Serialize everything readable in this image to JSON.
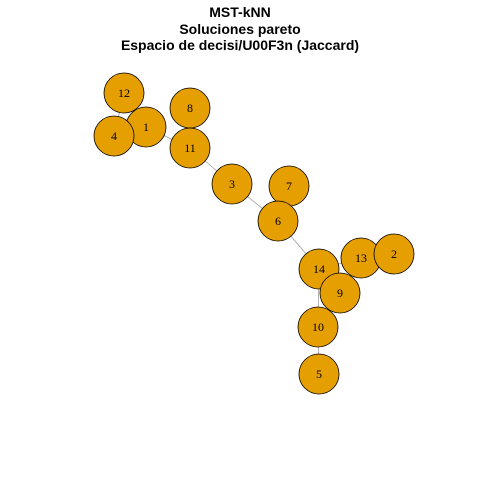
{
  "title": {
    "line1": "MST-kNN",
    "line2": "Soluciones pareto",
    "line3": "Espacio de decisi/U00F3n (Jaccard)"
  },
  "colors": {
    "node_fill": "#E69F00",
    "node_stroke": "#000000",
    "edge": "#A0A0A0"
  },
  "nodes": [
    {
      "id": "12",
      "label": "12"
    },
    {
      "id": "1",
      "label": "1"
    },
    {
      "id": "4",
      "label": "4"
    },
    {
      "id": "8",
      "label": "8"
    },
    {
      "id": "11",
      "label": "11"
    },
    {
      "id": "3",
      "label": "3"
    },
    {
      "id": "7",
      "label": "7"
    },
    {
      "id": "6",
      "label": "6"
    },
    {
      "id": "14",
      "label": "14"
    },
    {
      "id": "13",
      "label": "13"
    },
    {
      "id": "2",
      "label": "2"
    },
    {
      "id": "9",
      "label": "9"
    },
    {
      "id": "10",
      "label": "10"
    },
    {
      "id": "5",
      "label": "5"
    }
  ],
  "edges": [
    [
      "12",
      "1"
    ],
    [
      "12",
      "4"
    ],
    [
      "1",
      "4"
    ],
    [
      "1",
      "11"
    ],
    [
      "11",
      "8"
    ],
    [
      "11",
      "3"
    ],
    [
      "3",
      "6"
    ],
    [
      "6",
      "7"
    ],
    [
      "6",
      "14"
    ],
    [
      "14",
      "13"
    ],
    [
      "13",
      "2"
    ],
    [
      "14",
      "9"
    ],
    [
      "13",
      "9"
    ],
    [
      "14",
      "10"
    ],
    [
      "9",
      "10"
    ],
    [
      "10",
      "5"
    ]
  ]
}
